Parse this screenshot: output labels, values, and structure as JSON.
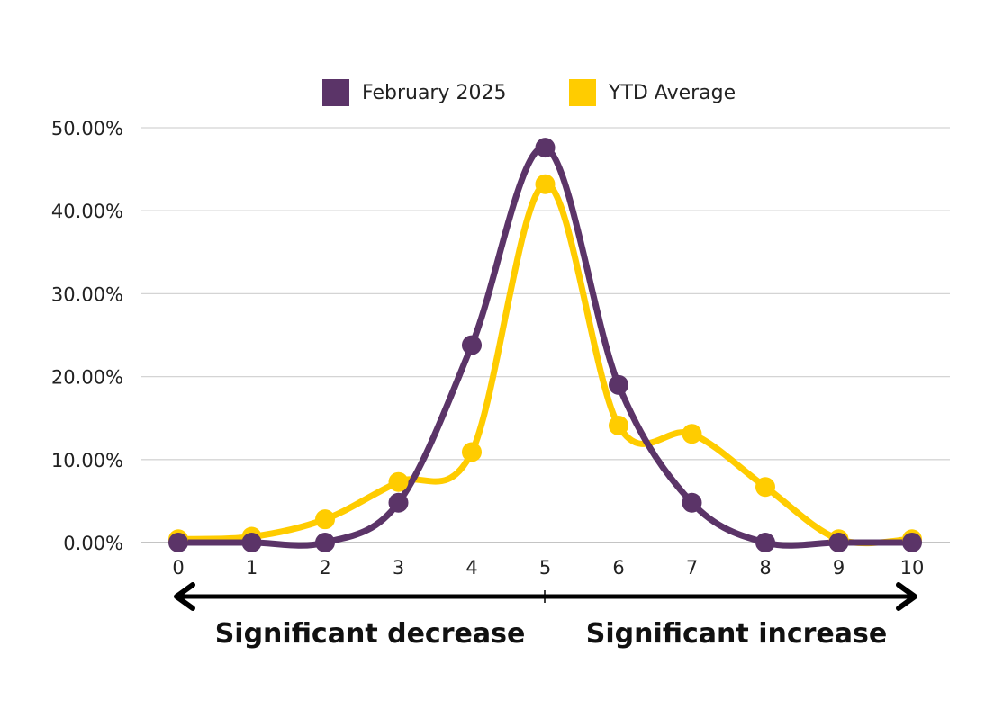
{
  "chart_data": {
    "type": "line",
    "smooth": true,
    "x": [
      0,
      1,
      2,
      3,
      4,
      5,
      6,
      7,
      8,
      9,
      10
    ],
    "x_tick_labels": [
      "0",
      "1",
      "2",
      "3",
      "4",
      "5",
      "6",
      "7",
      "8",
      "9",
      "10"
    ],
    "ylim": [
      0,
      50
    ],
    "y_tick_labels": [
      "0.00%",
      "10.00%",
      "20.00%",
      "30.00%",
      "40.00%",
      "50.00%"
    ],
    "y_ticks": [
      0,
      10,
      20,
      30,
      40,
      50
    ],
    "grid": true,
    "legend_position": "top",
    "series": [
      {
        "name": "February 2025",
        "color": "#5b3468",
        "values": [
          0.0,
          0.0,
          0.0,
          4.8,
          23.8,
          47.6,
          19.0,
          4.8,
          0.0,
          0.0,
          0.0
        ]
      },
      {
        "name": "YTD Average",
        "color": "#ffcc00",
        "values": [
          0.4,
          0.7,
          2.8,
          7.3,
          10.9,
          43.2,
          14.1,
          13.1,
          6.7,
          0.4,
          0.4
        ]
      }
    ],
    "annotations": {
      "left_label": "Significant decrease",
      "right_label": "Significant increase",
      "arrow": "double-headed"
    }
  }
}
